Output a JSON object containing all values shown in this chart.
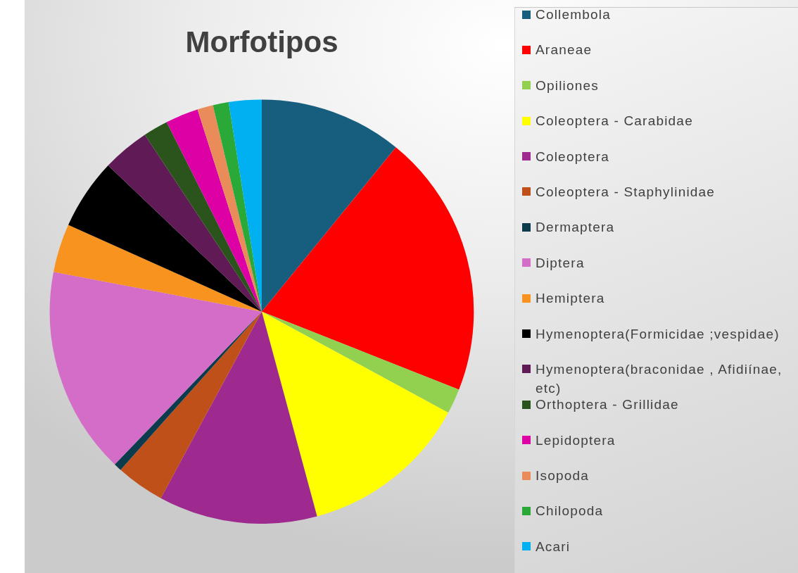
{
  "chart_data": {
    "type": "pie",
    "title": "Morfotipos",
    "categories": [
      "Collembola",
      "Araneae",
      "Opiliones",
      "Coleoptera - Carabidae",
      "Coleoptera",
      "Coleoptera - Staphylinidae",
      "Dermaptera",
      "Diptera",
      "Hemiptera",
      "Hymenoptera(Formicidae ;vespidae)",
      "Hymenoptera(braconidae , Afidiínae, etc)",
      "Orthoptera - Grillidae",
      "Lepidoptera",
      "Isopoda",
      "Chilopoda",
      "Acari"
    ],
    "values": [
      10.9,
      20.1,
      1.9,
      12.9,
      12.1,
      3.7,
      0.6,
      15.8,
      3.7,
      5.4,
      3.6,
      1.9,
      2.5,
      1.2,
      1.2,
      2.5
    ],
    "colors": [
      "#175e7e",
      "#ff0000",
      "#92d050",
      "#ffff00",
      "#9e2a8f",
      "#c0501a",
      "#0c3b4e",
      "#d46dc8",
      "#f7931e",
      "#000000",
      "#601a56",
      "#2a541b",
      "#dd00a5",
      "#e98c5a",
      "#2aa838",
      "#00b0f0"
    ],
    "legend": "right"
  }
}
